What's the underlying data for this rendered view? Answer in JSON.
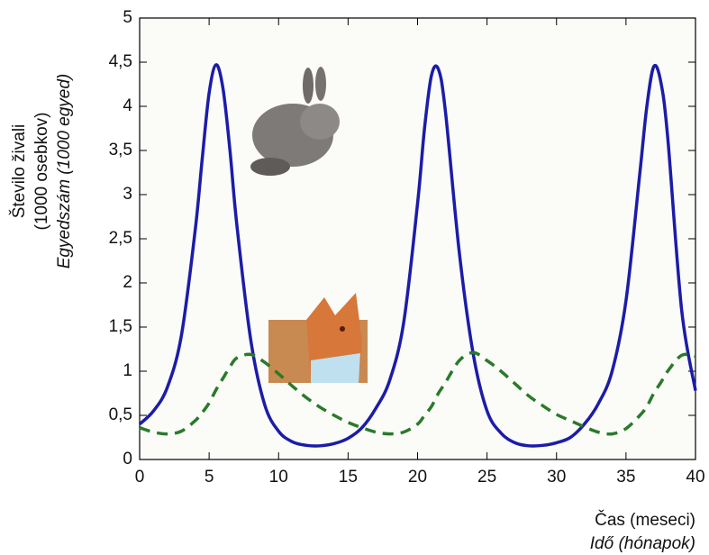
{
  "chart_data": {
    "type": "line",
    "y_label": [
      "Število živali",
      "(1000 osebkov)",
      "Egyedszám (1000 egyed)"
    ],
    "x_label": [
      "Čas (meseci)",
      "Idő (hónapok)"
    ],
    "x": [
      0,
      1,
      2,
      3,
      4,
      4.5,
      5,
      5.5,
      6,
      6.5,
      7,
      8,
      9,
      10,
      11,
      12,
      13,
      14,
      15,
      16,
      17,
      18,
      19,
      20,
      20.5,
      21,
      21.5,
      22,
      23,
      24,
      25,
      26,
      27,
      28,
      29,
      30,
      31,
      32,
      33,
      34,
      35,
      36,
      36.5,
      37,
      37.5,
      38,
      39,
      40
    ],
    "series": [
      {
        "color": "#1c1ca8",
        "dashed": false,
        "values": [
          0.4,
          0.55,
          0.82,
          1.4,
          2.6,
          3.4,
          4.15,
          4.47,
          4.2,
          3.5,
          2.65,
          1.35,
          0.62,
          0.32,
          0.2,
          0.16,
          0.155,
          0.18,
          0.24,
          0.36,
          0.58,
          0.9,
          1.55,
          2.9,
          3.75,
          4.35,
          4.42,
          3.95,
          2.35,
          1.2,
          0.55,
          0.3,
          0.19,
          0.155,
          0.16,
          0.19,
          0.25,
          0.4,
          0.63,
          1.0,
          1.8,
          3.25,
          4.0,
          4.45,
          4.28,
          3.65,
          1.7,
          0.78
        ]
      },
      {
        "color": "#2a7a2a",
        "dashed": true,
        "values": [
          0.36,
          0.31,
          0.29,
          0.32,
          0.44,
          0.53,
          0.64,
          0.79,
          0.92,
          1.05,
          1.15,
          1.19,
          1.1,
          0.97,
          0.83,
          0.7,
          0.59,
          0.5,
          0.42,
          0.36,
          0.31,
          0.29,
          0.31,
          0.4,
          0.5,
          0.6,
          0.75,
          0.87,
          1.12,
          1.21,
          1.12,
          1.0,
          0.86,
          0.72,
          0.61,
          0.51,
          0.44,
          0.37,
          0.31,
          0.29,
          0.35,
          0.5,
          0.6,
          0.75,
          0.87,
          1.0,
          1.18,
          1.17
        ]
      }
    ],
    "xlim": [
      0,
      40
    ],
    "xticks": [
      0,
      5,
      10,
      15,
      20,
      25,
      30,
      35,
      40
    ],
    "ylim": [
      0,
      5
    ],
    "yticks": [
      0,
      {
        "value": 0.5,
        "label": "0,5"
      },
      1,
      {
        "value": 1.5,
        "label": "1,5"
      },
      2,
      {
        "value": 2.5,
        "label": "2,5"
      },
      3,
      {
        "value": 3.5,
        "label": "3,5"
      },
      4,
      {
        "value": 4.5,
        "label": "4,5"
      },
      5
    ]
  }
}
